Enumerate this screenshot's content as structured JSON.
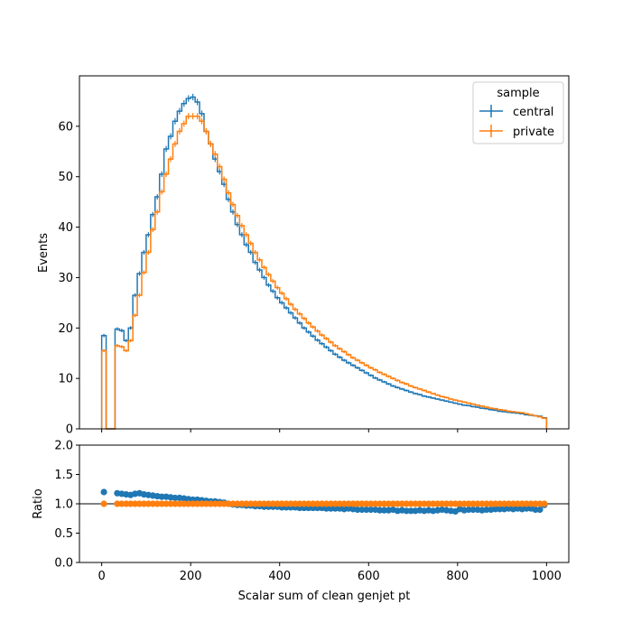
{
  "chart_data": [
    {
      "type": "histogram",
      "xlabel": "",
      "ylabel": "Events",
      "xlim": [
        -50,
        1050
      ],
      "ylim": [
        0,
        70
      ],
      "yticks": [
        0,
        10,
        20,
        30,
        40,
        50,
        60
      ],
      "xticks": [
        0,
        200,
        400,
        600,
        800,
        1000
      ],
      "bin_width": 10,
      "x_start": 0,
      "legend": {
        "title": "sample",
        "placement": "top-right",
        "entries": [
          "central",
          "private"
        ]
      },
      "series": [
        {
          "name": "central",
          "color": "#1f77b4",
          "values": [
            18.5,
            0,
            0,
            19.8,
            19.5,
            17.5,
            20,
            26.5,
            30.8,
            35,
            38.5,
            42.5,
            46,
            50.5,
            55.5,
            58,
            61,
            63,
            64.5,
            65.5,
            65.8,
            64.8,
            62.5,
            59,
            56.5,
            53.5,
            51,
            48.5,
            45.5,
            43,
            40.5,
            38.5,
            36.5,
            35,
            33,
            31.5,
            30,
            28.5,
            27.3,
            26,
            25,
            24,
            23,
            22,
            21,
            20,
            19.2,
            18.4,
            17.6,
            16.9,
            16.2,
            15.5,
            14.8,
            14.2,
            13.6,
            13.1,
            12.6,
            12.1,
            11.6,
            11.1,
            10.6,
            10.1,
            9.7,
            9.3,
            8.9,
            8.5,
            8.2,
            7.9,
            7.6,
            7.3,
            7,
            6.8,
            6.5,
            6.3,
            6.1,
            5.9,
            5.7,
            5.5,
            5.3,
            5.1,
            4.9,
            4.7,
            4.6,
            4.4,
            4.3,
            4.1,
            4,
            3.8,
            3.7,
            3.5,
            3.4,
            3.3,
            3.2,
            3.1,
            3,
            2.8,
            2.7,
            2.6,
            2.5,
            2.2
          ]
        },
        {
          "name": "private",
          "color": "#ff7f0e",
          "values": [
            15.5,
            0,
            0,
            16.5,
            16.3,
            15.5,
            17.5,
            22.5,
            26.5,
            31,
            35,
            39.5,
            43,
            47,
            50.5,
            53.5,
            56.5,
            59,
            60.5,
            62,
            62,
            62,
            61,
            59,
            56.5,
            54.5,
            52,
            49.5,
            46.8,
            44.5,
            42.3,
            40.3,
            38.5,
            36.8,
            35,
            33.5,
            32,
            30.6,
            29.3,
            28,
            26.9,
            25.8,
            24.7,
            23.7,
            22.8,
            21.9,
            21,
            20.2,
            19.4,
            18.6,
            17.9,
            17.2,
            16.5,
            15.9,
            15.3,
            14.7,
            14.1,
            13.6,
            13.1,
            12.6,
            12.1,
            11.7,
            11.2,
            10.8,
            10.4,
            10,
            9.6,
            9.2,
            8.9,
            8.5,
            8.2,
            7.9,
            7.6,
            7.3,
            7,
            6.7,
            6.4,
            6.2,
            5.9,
            5.7,
            5.5,
            5.3,
            5.1,
            4.9,
            4.7,
            4.5,
            4.3,
            4.1,
            4,
            3.8,
            3.7,
            3.5,
            3.4,
            3.3,
            3.2,
            3,
            2.8,
            2.6,
            2.4,
            2.1
          ]
        }
      ]
    },
    {
      "type": "scatter",
      "xlabel": "Scalar sum of clean genjet pt",
      "ylabel": "Ratio",
      "xlim": [
        -50,
        1050
      ],
      "ylim": [
        0,
        2
      ],
      "yticks": [
        0.0,
        0.5,
        1.0,
        1.5,
        2.0
      ],
      "ytick_labels": [
        "0.0",
        "0.5",
        "1.0",
        "1.5",
        "2.0"
      ],
      "xticks": [
        0,
        200,
        400,
        600,
        800,
        1000
      ],
      "reference_line": 1.0,
      "series": [
        {
          "name": "central",
          "color": "#1f77b4",
          "x": [
            5,
            35,
            45,
            55,
            65,
            75,
            85,
            95,
            105,
            115,
            125,
            135,
            145,
            155,
            165,
            175,
            185,
            195,
            205,
            215,
            225,
            235,
            245,
            255,
            265,
            275,
            285,
            295,
            305,
            315,
            325,
            335,
            345,
            355,
            365,
            375,
            385,
            395,
            405,
            415,
            425,
            435,
            445,
            455,
            465,
            475,
            485,
            495,
            505,
            515,
            525,
            535,
            545,
            555,
            565,
            575,
            585,
            595,
            605,
            615,
            625,
            635,
            645,
            655,
            665,
            675,
            685,
            695,
            705,
            715,
            725,
            735,
            745,
            755,
            765,
            775,
            785,
            795,
            805,
            815,
            825,
            835,
            845,
            855,
            865,
            875,
            885,
            895,
            905,
            915,
            925,
            935,
            945,
            955,
            965,
            975,
            985,
            995
          ],
          "values": [
            1.2,
            1.18,
            1.17,
            1.16,
            1.15,
            1.17,
            1.18,
            1.16,
            1.15,
            1.14,
            1.13,
            1.12,
            1.12,
            1.11,
            1.1,
            1.1,
            1.09,
            1.08,
            1.07,
            1.07,
            1.06,
            1.05,
            1.04,
            1.04,
            1.03,
            1.02,
            1.0,
            0.99,
            0.98,
            0.98,
            0.97,
            0.97,
            0.96,
            0.96,
            0.95,
            0.95,
            0.95,
            0.95,
            0.94,
            0.94,
            0.94,
            0.94,
            0.93,
            0.93,
            0.93,
            0.93,
            0.93,
            0.93,
            0.92,
            0.92,
            0.92,
            0.92,
            0.91,
            0.92,
            0.91,
            0.9,
            0.9,
            0.9,
            0.9,
            0.9,
            0.89,
            0.89,
            0.89,
            0.9,
            0.88,
            0.89,
            0.88,
            0.88,
            0.88,
            0.89,
            0.88,
            0.89,
            0.88,
            0.89,
            0.9,
            0.89,
            0.88,
            0.87,
            0.91,
            0.89,
            0.9,
            0.9,
            0.9,
            0.89,
            0.9,
            0.9,
            0.91,
            0.91,
            0.91,
            0.92,
            0.91,
            0.92,
            0.91,
            0.92,
            0.92,
            0.9,
            0.9,
            0.98
          ]
        },
        {
          "name": "private",
          "color": "#ff7f0e",
          "x": [
            5,
            35,
            45,
            55,
            65,
            75,
            85,
            95,
            105,
            115,
            125,
            135,
            145,
            155,
            165,
            175,
            185,
            195,
            205,
            215,
            225,
            235,
            245,
            255,
            265,
            275,
            285,
            295,
            305,
            315,
            325,
            335,
            345,
            355,
            365,
            375,
            385,
            395,
            405,
            415,
            425,
            435,
            445,
            455,
            465,
            475,
            485,
            495,
            505,
            515,
            525,
            535,
            545,
            555,
            565,
            575,
            585,
            595,
            605,
            615,
            625,
            635,
            645,
            655,
            665,
            675,
            685,
            695,
            705,
            715,
            725,
            735,
            745,
            755,
            765,
            775,
            785,
            795,
            805,
            815,
            825,
            835,
            845,
            855,
            865,
            875,
            885,
            895,
            905,
            915,
            925,
            935,
            945,
            955,
            965,
            975,
            985,
            995
          ],
          "values": [
            1.0,
            1.0,
            1.0,
            1.0,
            1.0,
            1.0,
            1.0,
            1.0,
            1.0,
            1.0,
            1.0,
            1.0,
            1.0,
            1.0,
            1.0,
            1.0,
            1.0,
            1.0,
            1.0,
            1.0,
            1.0,
            1.0,
            1.0,
            1.0,
            1.0,
            1.0,
            1.0,
            1.0,
            1.0,
            1.0,
            1.0,
            1.0,
            1.0,
            1.0,
            1.0,
            1.0,
            1.0,
            1.0,
            1.0,
            1.0,
            1.0,
            1.0,
            1.0,
            1.0,
            1.0,
            1.0,
            1.0,
            1.0,
            1.0,
            1.0,
            1.0,
            1.0,
            1.0,
            1.0,
            1.0,
            1.0,
            1.0,
            1.0,
            1.0,
            1.0,
            1.0,
            1.0,
            1.0,
            1.0,
            1.0,
            1.0,
            1.0,
            1.0,
            1.0,
            1.0,
            1.0,
            1.0,
            1.0,
            1.0,
            1.0,
            1.0,
            1.0,
            1.0,
            1.0,
            1.0,
            1.0,
            1.0,
            1.0,
            1.0,
            1.0,
            1.0,
            1.0,
            1.0,
            1.0,
            1.0,
            1.0,
            1.0,
            1.0,
            1.0,
            1.0,
            1.0,
            1.0,
            1.0
          ]
        }
      ]
    }
  ]
}
